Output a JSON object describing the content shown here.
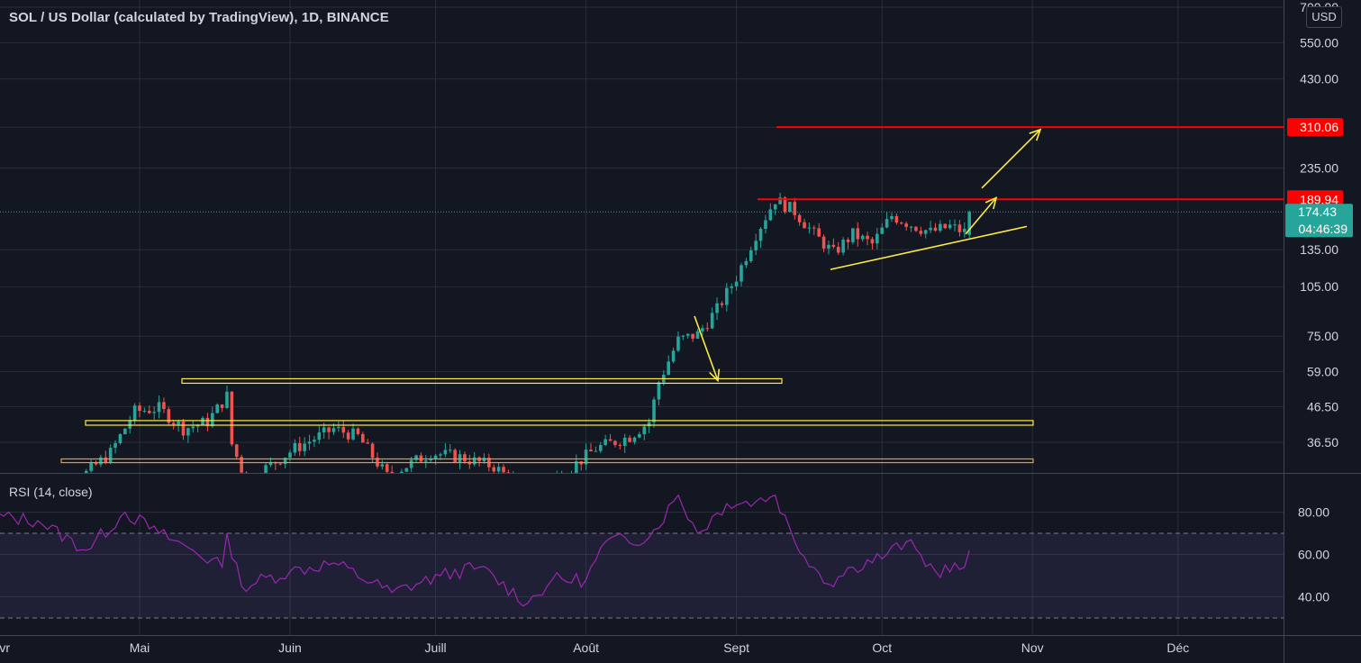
{
  "header": {
    "title": "SOL / US Dollar (calculated by TradingView), 1D, BINANCE",
    "currency": "USD"
  },
  "price_scale": {
    "ticks": [
      "700.00",
      "550.00",
      "430.00",
      "310.06",
      "235.00",
      "189.94",
      "135.00",
      "105.00",
      "75.00",
      "59.00",
      "46.50",
      "36.50"
    ],
    "current_price": "174.43",
    "countdown": "04:46:39",
    "level_labels": [
      "310.06",
      "189.94"
    ]
  },
  "rsi": {
    "title": "RSI (14, close)",
    "ticks": [
      "80.00",
      "60.00",
      "40.00"
    ],
    "overbought": 70,
    "oversold": 30
  },
  "time_axis": {
    "labels": [
      "vr",
      "Mai",
      "Juin",
      "Juill",
      "Août",
      "Sept",
      "Oct",
      "Nov",
      "Déc"
    ]
  },
  "colors": {
    "background": "#131722",
    "up": "#26a69a",
    "down": "#ef5350",
    "level_line": "#ff0000",
    "annotation": "#ffeb3b",
    "zone_orange": "#ff9800",
    "rsi_line": "#9c27b0",
    "rsi_band": "#7e57c2"
  },
  "chart_data": {
    "type": "candlestick",
    "symbol": "SOL / US Dollar",
    "interval": "1D",
    "scale": "log",
    "price_ticks": [
      700,
      550,
      430,
      235,
      135,
      105,
      75,
      59,
      46.5,
      36.5
    ],
    "horizontal_levels": [
      310.06,
      189.94
    ],
    "support_zones": [
      {
        "low": 54.5,
        "high": 56.2
      },
      {
        "low": 41.0,
        "high": 42.3
      },
      {
        "low": 31.8,
        "high": 32.6
      }
    ],
    "last_price": 174.43,
    "anchors": [
      {
        "date": "2021-04-10",
        "close": 22
      },
      {
        "date": "2021-04-18",
        "close": 28
      },
      {
        "date": "2021-04-25",
        "close": 34
      },
      {
        "date": "2021-04-30",
        "close": 45
      },
      {
        "date": "2021-05-05",
        "close": 46
      },
      {
        "date": "2021-05-10",
        "close": 40
      },
      {
        "date": "2021-05-15",
        "close": 42
      },
      {
        "date": "2021-05-19",
        "close": 50
      },
      {
        "date": "2021-05-20",
        "close": 36
      },
      {
        "date": "2021-05-23",
        "close": 28
      },
      {
        "date": "2021-06-02",
        "close": 35
      },
      {
        "date": "2021-06-10",
        "close": 40
      },
      {
        "date": "2021-06-15",
        "close": 38
      },
      {
        "date": "2021-06-21",
        "close": 29
      },
      {
        "date": "2021-06-30",
        "close": 34
      },
      {
        "date": "2021-07-06",
        "close": 33
      },
      {
        "date": "2021-07-13",
        "close": 31
      },
      {
        "date": "2021-07-20",
        "close": 26
      },
      {
        "date": "2021-07-28",
        "close": 30
      },
      {
        "date": "2021-08-03",
        "close": 35
      },
      {
        "date": "2021-08-10",
        "close": 38
      },
      {
        "date": "2021-08-14",
        "close": 42
      },
      {
        "date": "2021-08-16",
        "close": 55
      },
      {
        "date": "2021-08-20",
        "close": 73
      },
      {
        "date": "2021-08-24",
        "close": 76
      },
      {
        "date": "2021-08-28",
        "close": 90
      },
      {
        "date": "2021-09-01",
        "close": 112
      },
      {
        "date": "2021-09-05",
        "close": 150
      },
      {
        "date": "2021-09-09",
        "close": 190
      },
      {
        "date": "2021-09-13",
        "close": 175
      },
      {
        "date": "2021-09-17",
        "close": 150
      },
      {
        "date": "2021-09-21",
        "close": 132
      },
      {
        "date": "2021-09-25",
        "close": 150
      },
      {
        "date": "2021-09-29",
        "close": 140
      },
      {
        "date": "2021-10-03",
        "close": 170
      },
      {
        "date": "2021-10-07",
        "close": 160
      },
      {
        "date": "2021-10-11",
        "close": 152
      },
      {
        "date": "2021-10-15",
        "close": 158
      },
      {
        "date": "2021-10-18",
        "close": 152
      },
      {
        "date": "2021-10-19",
        "close": 174.43
      }
    ],
    "rsi_anchors": [
      {
        "date": "2021-04-01",
        "value": 78
      },
      {
        "date": "2021-04-10",
        "value": 76
      },
      {
        "date": "2021-04-20",
        "value": 62
      },
      {
        "date": "2021-04-28",
        "value": 80
      },
      {
        "date": "2021-05-05",
        "value": 70
      },
      {
        "date": "2021-05-12",
        "value": 62
      },
      {
        "date": "2021-05-18",
        "value": 54
      },
      {
        "date": "2021-05-19",
        "value": 70
      },
      {
        "date": "2021-05-22",
        "value": 45
      },
      {
        "date": "2021-06-01",
        "value": 52
      },
      {
        "date": "2021-06-10",
        "value": 56
      },
      {
        "date": "2021-06-22",
        "value": 42
      },
      {
        "date": "2021-07-02",
        "value": 50
      },
      {
        "date": "2021-07-10",
        "value": 54
      },
      {
        "date": "2021-07-20",
        "value": 37
      },
      {
        "date": "2021-07-25",
        "value": 48
      },
      {
        "date": "2021-08-01",
        "value": 48
      },
      {
        "date": "2021-08-05",
        "value": 66
      },
      {
        "date": "2021-08-14",
        "value": 68
      },
      {
        "date": "2021-08-20",
        "value": 88
      },
      {
        "date": "2021-08-24",
        "value": 70
      },
      {
        "date": "2021-08-30",
        "value": 84
      },
      {
        "date": "2021-09-05",
        "value": 85
      },
      {
        "date": "2021-09-09",
        "value": 88
      },
      {
        "date": "2021-09-13",
        "value": 66
      },
      {
        "date": "2021-09-20",
        "value": 46
      },
      {
        "date": "2021-09-25",
        "value": 54
      },
      {
        "date": "2021-10-02",
        "value": 60
      },
      {
        "date": "2021-10-06",
        "value": 66
      },
      {
        "date": "2021-10-12",
        "value": 52
      },
      {
        "date": "2021-10-18",
        "value": 54
      },
      {
        "date": "2021-10-19",
        "value": 62
      }
    ],
    "rsi_ylim": [
      30,
      90
    ],
    "x_range": [
      "2021-03-31",
      "2021-12-20"
    ]
  }
}
